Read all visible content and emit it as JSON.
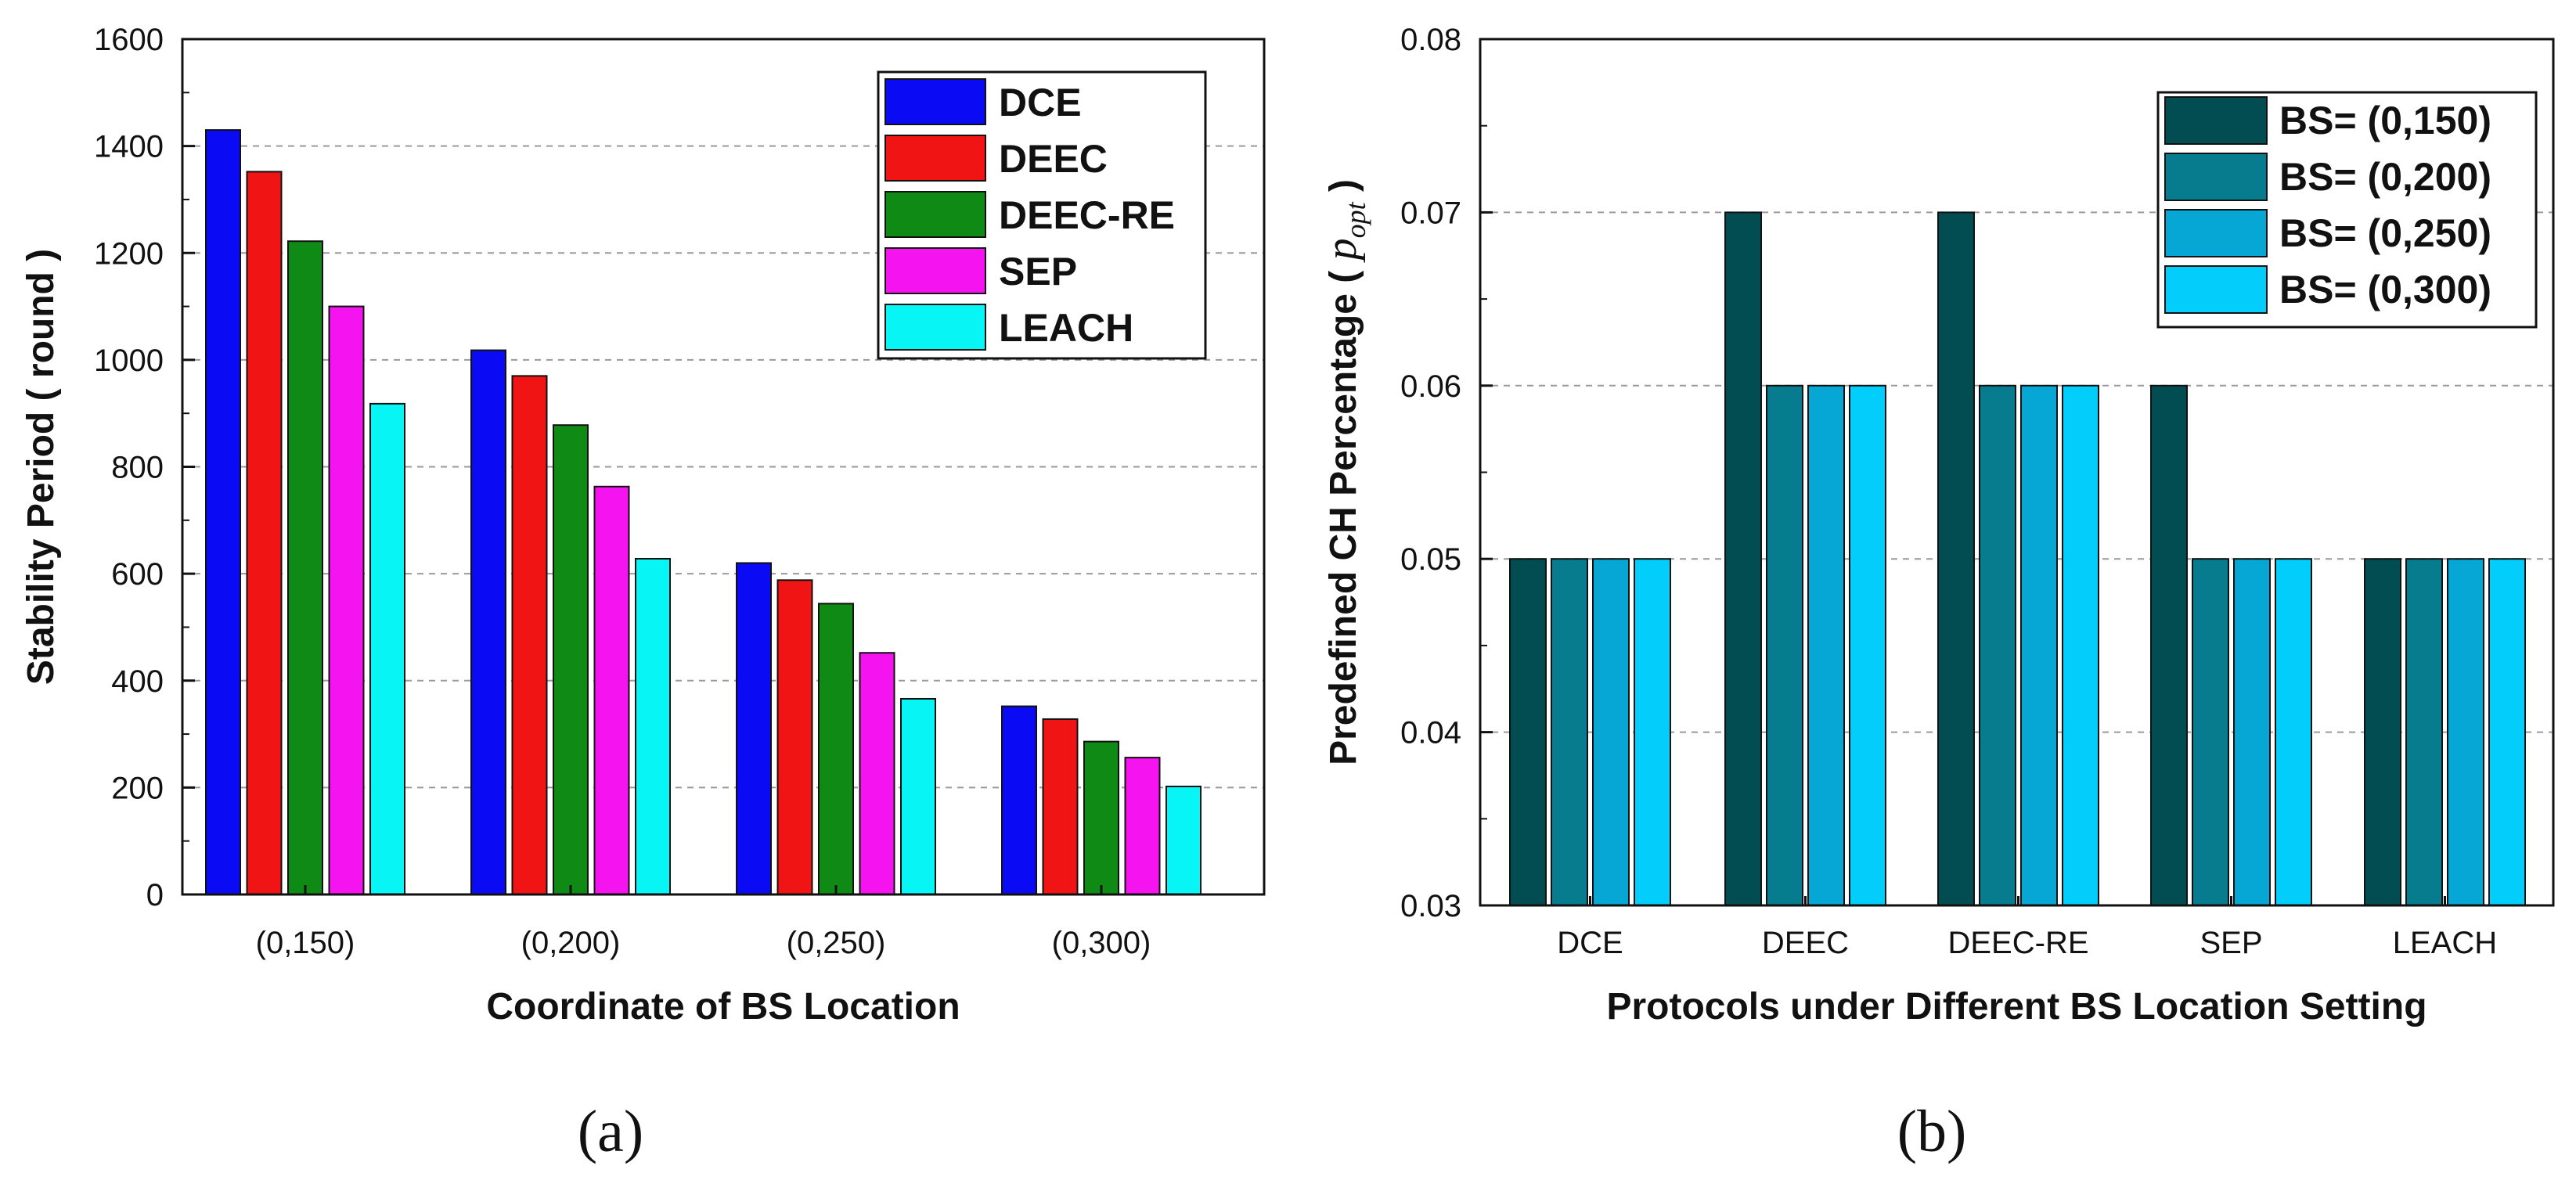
{
  "charts": [
    {
      "panel_label": "(a)",
      "chart_data": {
        "type": "bar",
        "xlabel": "Coordinate of BS Location",
        "ylabel": "Stability Period ( round )",
        "ylim": [
          0,
          1600
        ],
        "yticks": [
          "0",
          "200",
          "400",
          "600",
          "800",
          "1000",
          "1200",
          "1400",
          "1600"
        ],
        "categories": [
          "(0,150)",
          "(0,200)",
          "(0,250)",
          "(0,300)"
        ],
        "grid": true,
        "legend": "top-right",
        "series": [
          {
            "name": "DCE",
            "color": "#0a0af5",
            "values": [
              1430,
              1018,
              620,
              352
            ]
          },
          {
            "name": "DEEC",
            "color": "#f01414",
            "values": [
              1352,
              970,
              588,
              328
            ]
          },
          {
            "name": "DEEC-RE",
            "color": "#0f8a14",
            "values": [
              1222,
              878,
              544,
              286
            ]
          },
          {
            "name": "SEP",
            "color": "#f514f0",
            "values": [
              1100,
              763,
              452,
              256
            ]
          },
          {
            "name": "LEACH",
            "color": "#08f5f5",
            "values": [
              918,
              628,
              366,
              202
            ]
          }
        ]
      }
    },
    {
      "panel_label": "(b)",
      "chart_data": {
        "type": "bar",
        "xlabel": "Protocols under Different BS Location Setting",
        "ylabel": "Predefined CH Percentage ( ",
        "ylabel_symbol": "p",
        "ylabel_subscript": "opt",
        "ylabel_close": " )",
        "ylim": [
          0.03,
          0.08
        ],
        "yticks": [
          "0.03",
          "0.04",
          "0.05",
          "0.06",
          "0.07",
          "0.08"
        ],
        "categories": [
          "DCE",
          "DEEC",
          "DEEC-RE",
          "SEP",
          "LEACH"
        ],
        "grid": true,
        "legend": "top-right",
        "series": [
          {
            "name": "BS= (0,150)",
            "color": "#014d52",
            "values": [
              0.05,
              0.07,
              0.07,
              0.06,
              0.05
            ]
          },
          {
            "name": "BS= (0,200)",
            "color": "#077c8f",
            "values": [
              0.05,
              0.06,
              0.06,
              0.05,
              0.05
            ]
          },
          {
            "name": "BS= (0,250)",
            "color": "#06a7d4",
            "values": [
              0.05,
              0.06,
              0.06,
              0.05,
              0.05
            ]
          },
          {
            "name": "BS= (0,300)",
            "color": "#03cdfa",
            "values": [
              0.05,
              0.06,
              0.06,
              0.05,
              0.05
            ]
          }
        ]
      }
    }
  ]
}
